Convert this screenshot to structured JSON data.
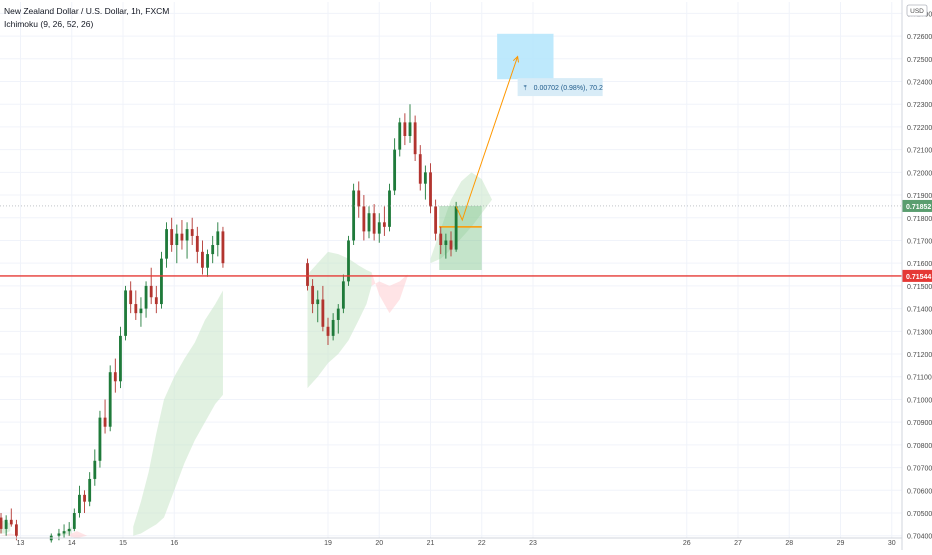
{
  "header": {
    "title": "New Zealand Dollar / U.S. Dollar, 1h, FXCM",
    "indicator": "Ichimoku (9, 26, 52, 26)"
  },
  "currency": "USD",
  "colors": {
    "bull": "#26a69a",
    "bear": "#ef5350",
    "candle_up": "#1f7a3a",
    "candle_down": "#b2342f",
    "cloud_bull": "#c8e6c9",
    "cloud_bear": "#ffcdd2",
    "support_line": "#e53935",
    "price_tag": "#5a9e6f",
    "target_box": "#b3e5fc",
    "projection": "#ff9800"
  },
  "chart_data": {
    "type": "candlestick",
    "symbol": "NZD/USD",
    "timeframe": "1h",
    "source": "FXCM",
    "y_range": [
      0.7039,
      0.7275
    ],
    "y_ticks": [
      "0.72700",
      "0.72600",
      "0.72500",
      "0.72400",
      "0.72300",
      "0.72200",
      "0.72100",
      "0.72000",
      "0.71900",
      "0.71800",
      "0.71700",
      "0.71600",
      "0.71500",
      "0.71400",
      "0.71300",
      "0.71200",
      "0.71100",
      "0.71000",
      "0.70900",
      "0.70800",
      "0.70700",
      "0.70600",
      "0.70500",
      "0.70400"
    ],
    "x_range": [
      12.6,
      30.2
    ],
    "x_ticks": [
      {
        "x": 13,
        "label": "13"
      },
      {
        "x": 14,
        "label": "14"
      },
      {
        "x": 15,
        "label": "15"
      },
      {
        "x": 16,
        "label": "16"
      },
      {
        "x": 19,
        "label": "19"
      },
      {
        "x": 20,
        "label": "20"
      },
      {
        "x": 21,
        "label": "21"
      },
      {
        "x": 22,
        "label": "22"
      },
      {
        "x": 23,
        "label": "23"
      },
      {
        "x": 26,
        "label": "26"
      },
      {
        "x": 27,
        "label": "27"
      },
      {
        "x": 28,
        "label": "28"
      },
      {
        "x": 29,
        "label": "29"
      },
      {
        "x": 30,
        "label": "30"
      }
    ],
    "last_price": "0.71852",
    "last_price_value": 0.71852,
    "support_level": "0.71544",
    "support_value": 0.71544,
    "measurement_label": "0.00702 (0.98%), 70.2",
    "candles": [
      [
        12.62,
        0.7048,
        0.705,
        0.7041,
        0.7043
      ],
      [
        12.72,
        0.7043,
        0.7049,
        0.704,
        0.7047
      ],
      [
        12.82,
        0.7047,
        0.7052,
        0.7044,
        0.7045
      ],
      [
        12.92,
        0.7045,
        0.7047,
        0.7038,
        0.704
      ],
      [
        13.6,
        0.7038,
        0.7041,
        0.7037,
        0.704
      ],
      [
        13.75,
        0.704,
        0.7043,
        0.7038,
        0.7041
      ],
      [
        13.85,
        0.7041,
        0.7045,
        0.7039,
        0.7042
      ],
      [
        13.95,
        0.7042,
        0.7046,
        0.704,
        0.7043
      ],
      [
        14.05,
        0.7043,
        0.7052,
        0.7042,
        0.705
      ],
      [
        14.15,
        0.705,
        0.7062,
        0.7048,
        0.7058
      ],
      [
        14.25,
        0.7058,
        0.706,
        0.705,
        0.7055
      ],
      [
        14.35,
        0.7055,
        0.7068,
        0.7053,
        0.7065
      ],
      [
        14.45,
        0.7065,
        0.7078,
        0.7062,
        0.7073
      ],
      [
        14.55,
        0.7073,
        0.7095,
        0.707,
        0.7092
      ],
      [
        14.65,
        0.7092,
        0.71,
        0.7085,
        0.7088
      ],
      [
        14.75,
        0.7088,
        0.7115,
        0.7086,
        0.7112
      ],
      [
        14.85,
        0.7112,
        0.7118,
        0.7103,
        0.7108
      ],
      [
        14.95,
        0.7108,
        0.7132,
        0.7105,
        0.7128
      ],
      [
        15.05,
        0.7128,
        0.715,
        0.7126,
        0.7148
      ],
      [
        15.15,
        0.7148,
        0.7152,
        0.7138,
        0.7142
      ],
      [
        15.25,
        0.7142,
        0.7148,
        0.7135,
        0.7138
      ],
      [
        15.35,
        0.7138,
        0.7145,
        0.7132,
        0.714
      ],
      [
        15.45,
        0.714,
        0.7152,
        0.7136,
        0.715
      ],
      [
        15.55,
        0.715,
        0.7158,
        0.7142,
        0.7145
      ],
      [
        15.65,
        0.7145,
        0.715,
        0.7138,
        0.7142
      ],
      [
        15.75,
        0.7142,
        0.7165,
        0.714,
        0.7162
      ],
      [
        15.85,
        0.7162,
        0.7178,
        0.7158,
        0.7175
      ],
      [
        15.95,
        0.7175,
        0.718,
        0.7165,
        0.7168
      ],
      [
        16.05,
        0.7168,
        0.7177,
        0.716,
        0.7173
      ],
      [
        16.15,
        0.7173,
        0.7179,
        0.7166,
        0.717
      ],
      [
        16.25,
        0.717,
        0.7178,
        0.7162,
        0.7175
      ],
      [
        16.35,
        0.7175,
        0.718,
        0.7168,
        0.7172
      ],
      [
        16.45,
        0.7172,
        0.7176,
        0.716,
        0.7165
      ],
      [
        16.55,
        0.7165,
        0.717,
        0.7155,
        0.7158
      ],
      [
        16.65,
        0.7158,
        0.7166,
        0.7154,
        0.7164
      ],
      [
        16.75,
        0.7164,
        0.7172,
        0.716,
        0.7168
      ],
      [
        16.85,
        0.7168,
        0.7178,
        0.7163,
        0.7174
      ],
      [
        16.95,
        0.7174,
        0.7176,
        0.7158,
        0.716
      ],
      [
        18.6,
        0.716,
        0.7162,
        0.7148,
        0.715
      ],
      [
        18.7,
        0.715,
        0.7153,
        0.7138,
        0.7142
      ],
      [
        18.8,
        0.7142,
        0.7148,
        0.7134,
        0.7144
      ],
      [
        18.9,
        0.7144,
        0.715,
        0.713,
        0.7132
      ],
      [
        19.0,
        0.7132,
        0.7136,
        0.7124,
        0.7128
      ],
      [
        19.1,
        0.7128,
        0.7138,
        0.7126,
        0.7135
      ],
      [
        19.2,
        0.7135,
        0.7142,
        0.7129,
        0.714
      ],
      [
        19.3,
        0.714,
        0.7155,
        0.7138,
        0.7152
      ],
      [
        19.4,
        0.7152,
        0.7172,
        0.715,
        0.717
      ],
      [
        19.5,
        0.717,
        0.7195,
        0.7168,
        0.7192
      ],
      [
        19.6,
        0.7192,
        0.7196,
        0.718,
        0.7185
      ],
      [
        19.7,
        0.7185,
        0.719,
        0.717,
        0.7174
      ],
      [
        19.8,
        0.7174,
        0.7185,
        0.7171,
        0.7182
      ],
      [
        19.9,
        0.7182,
        0.7186,
        0.717,
        0.7173
      ],
      [
        20.0,
        0.7173,
        0.7182,
        0.7169,
        0.7178
      ],
      [
        20.1,
        0.7178,
        0.7185,
        0.7172,
        0.7176
      ],
      [
        20.2,
        0.7176,
        0.7195,
        0.7174,
        0.7192
      ],
      [
        20.3,
        0.7192,
        0.7215,
        0.719,
        0.721
      ],
      [
        20.4,
        0.721,
        0.7224,
        0.7207,
        0.7222
      ],
      [
        20.5,
        0.7222,
        0.7226,
        0.7212,
        0.7216
      ],
      [
        20.6,
        0.7216,
        0.723,
        0.7213,
        0.7222
      ],
      [
        20.7,
        0.7222,
        0.7225,
        0.7205,
        0.7208
      ],
      [
        20.8,
        0.7208,
        0.7212,
        0.7192,
        0.7195
      ],
      [
        20.9,
        0.7195,
        0.7203,
        0.7188,
        0.72
      ],
      [
        21.0,
        0.72,
        0.7204,
        0.7182,
        0.7185
      ],
      [
        21.1,
        0.7185,
        0.7188,
        0.717,
        0.7173
      ],
      [
        21.2,
        0.7173,
        0.7176,
        0.7164,
        0.7168
      ],
      [
        21.3,
        0.7168,
        0.7173,
        0.7162,
        0.717
      ],
      [
        21.4,
        0.717,
        0.7174,
        0.7163,
        0.7166
      ],
      [
        21.5,
        0.7166,
        0.7187,
        0.7165,
        0.7185
      ]
    ],
    "cloud_bull": [
      [
        12.6,
        0.7041,
        0.7046
      ],
      [
        12.7,
        0.7041,
        0.7047
      ],
      [
        12.8,
        0.7042,
        0.7045
      ],
      [
        13.8,
        0.704,
        0.7041
      ],
      [
        14.0,
        0.7041,
        0.7044
      ],
      [
        15.2,
        0.704,
        0.7044
      ],
      [
        15.35,
        0.7041,
        0.7055
      ],
      [
        15.5,
        0.7043,
        0.7068
      ],
      [
        15.65,
        0.7045,
        0.7085
      ],
      [
        15.8,
        0.7048,
        0.71
      ],
      [
        16.0,
        0.706,
        0.711
      ],
      [
        16.2,
        0.7072,
        0.7118
      ],
      [
        16.4,
        0.7082,
        0.7125
      ],
      [
        16.6,
        0.709,
        0.7135
      ],
      [
        16.8,
        0.7098,
        0.7142
      ],
      [
        16.95,
        0.7102,
        0.7148
      ],
      [
        18.6,
        0.7105,
        0.7155
      ],
      [
        18.8,
        0.711,
        0.716
      ],
      [
        19.0,
        0.7116,
        0.7165
      ],
      [
        19.2,
        0.712,
        0.7164
      ],
      [
        19.4,
        0.7126,
        0.7162
      ],
      [
        19.6,
        0.7135,
        0.7159
      ],
      [
        19.75,
        0.7142,
        0.7157
      ],
      [
        19.85,
        0.715,
        0.7156
      ],
      [
        21.0,
        0.716,
        0.7162
      ],
      [
        21.2,
        0.7162,
        0.7175
      ],
      [
        21.4,
        0.7166,
        0.7188
      ],
      [
        21.6,
        0.7171,
        0.7196
      ],
      [
        21.8,
        0.7176,
        0.72
      ],
      [
        22.0,
        0.7182,
        0.7197
      ],
      [
        22.2,
        0.7188,
        0.7188
      ]
    ],
    "cloud_bear": [
      [
        12.6,
        0.704,
        0.704
      ],
      [
        12.8,
        0.704,
        0.7041
      ],
      [
        13.0,
        0.704,
        0.704
      ],
      [
        13.9,
        0.704,
        0.704
      ],
      [
        14.1,
        0.7039,
        0.7042
      ],
      [
        14.3,
        0.704,
        0.704
      ],
      [
        19.85,
        0.715,
        0.7156
      ],
      [
        20.0,
        0.7152,
        0.7146
      ],
      [
        20.2,
        0.715,
        0.7138
      ],
      [
        20.4,
        0.7152,
        0.7144
      ],
      [
        20.55,
        0.7155,
        0.7154
      ]
    ],
    "position_long": {
      "x_from": 21.17,
      "x_to": 22.0,
      "entry": 0.7176,
      "target": 0.71852,
      "stop": 0.7157
    },
    "target_box": {
      "x_from": 22.3,
      "x_to": 23.4,
      "y_top": 0.7261,
      "y_bottom": 0.7241
    },
    "projection": [
      [
        21.5,
        0.7185
      ],
      [
        21.62,
        0.7179
      ],
      [
        21.75,
        0.7188
      ],
      [
        22.7,
        0.7251
      ]
    ]
  }
}
